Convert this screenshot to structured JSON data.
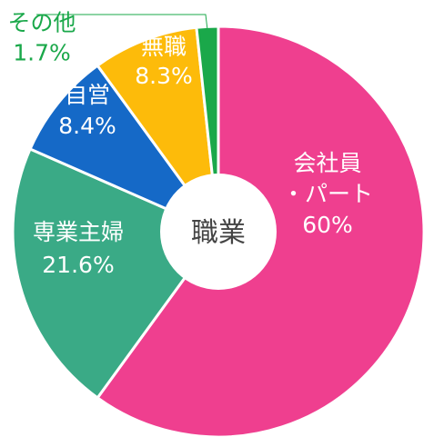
{
  "chart_data": {
    "type": "pie",
    "title": "職業",
    "slices": [
      {
        "name": "会社員・パート",
        "label_lines": [
          "会社員",
          "・パート",
          "60%"
        ],
        "value": 60.0,
        "color": "#ef3f8f",
        "text_color": "#ffffff"
      },
      {
        "name": "専業主婦",
        "label_lines": [
          "専業主婦",
          "21.6%"
        ],
        "value": 21.6,
        "color": "#3aaa86",
        "text_color": "#ffffff"
      },
      {
        "name": "自営",
        "label_lines": [
          "自営",
          "8.4%"
        ],
        "value": 8.4,
        "color": "#1569c7",
        "text_color": "#ffffff"
      },
      {
        "name": "無職",
        "label_lines": [
          "無職",
          "8.3%"
        ],
        "value": 8.3,
        "color": "#fdbb0a",
        "text_color": "#ffffff"
      },
      {
        "name": "その他",
        "label_lines": [
          "その他",
          "1.7%"
        ],
        "value": 1.7,
        "color": "#1aa84a",
        "text_color": "#1aa84a"
      }
    ]
  }
}
